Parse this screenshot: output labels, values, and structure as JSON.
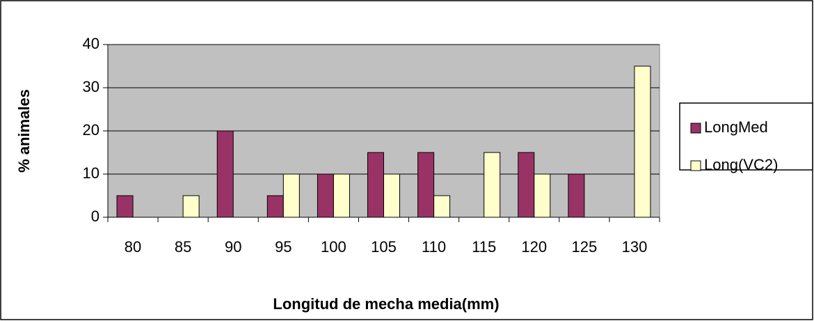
{
  "chart_data": {
    "type": "bar",
    "x_label": "Longitud de mecha media(mm)",
    "y_label": "% animales",
    "categories": [
      "80",
      "85",
      "90",
      "95",
      "100",
      "105",
      "110",
      "115",
      "120",
      "125",
      "130"
    ],
    "series": [
      {
        "name": "LongMed",
        "color": "#993366",
        "values": [
          5,
          0,
          20,
          5,
          10,
          15,
          15,
          0,
          15,
          10,
          0
        ]
      },
      {
        "name": "Long(VC2)",
        "color": "#ffffcc",
        "values": [
          0,
          5,
          0,
          10,
          10,
          10,
          5,
          15,
          10,
          0,
          35
        ]
      }
    ],
    "ylim": [
      0,
      40
    ],
    "yticks": [
      0,
      10,
      20,
      30,
      40
    ],
    "grid": true,
    "legend": "right",
    "plot_background": "#c0c0c0"
  }
}
